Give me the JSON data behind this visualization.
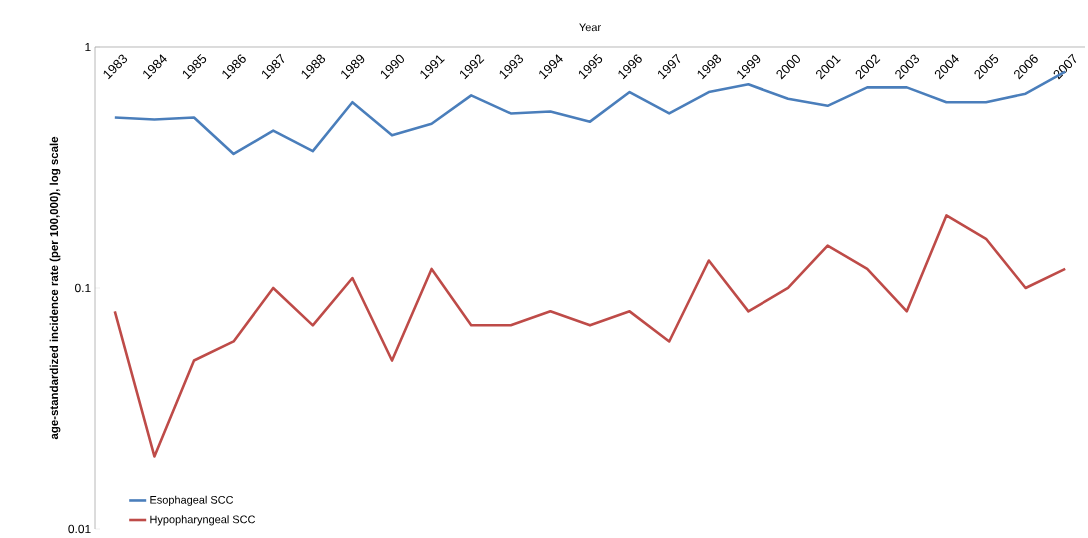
{
  "chart_data": {
    "type": "line",
    "xlabel": "Year",
    "ylabel": "age-standardized incidence rate (per 100,000), log scale",
    "categories": [
      "1983",
      "1984",
      "1985",
      "1986",
      "1987",
      "1988",
      "1989",
      "1990",
      "1991",
      "1992",
      "1993",
      "1994",
      "1995",
      "1996",
      "1997",
      "1998",
      "1999",
      "2000",
      "2001",
      "2002",
      "2003",
      "2004",
      "2005",
      "2006",
      "2007"
    ],
    "series": [
      {
        "name": "Esophageal SCC",
        "color": "#4a7ebb",
        "values": [
          0.51,
          0.5,
          0.51,
          0.36,
          0.45,
          0.37,
          0.59,
          0.43,
          0.48,
          0.63,
          0.53,
          0.54,
          0.49,
          0.65,
          0.53,
          0.65,
          0.7,
          0.61,
          0.57,
          0.68,
          0.68,
          0.59,
          0.59,
          0.64,
          0.79
        ]
      },
      {
        "name": "Hypopharyngeal SCC",
        "color": "#be4b48",
        "values": [
          0.08,
          0.02,
          0.05,
          0.06,
          0.1,
          0.07,
          0.11,
          0.05,
          0.12,
          0.07,
          0.07,
          0.08,
          0.07,
          0.08,
          0.06,
          0.13,
          0.08,
          0.1,
          0.15,
          0.12,
          0.08,
          0.2,
          0.16,
          0.1,
          0.12
        ]
      }
    ],
    "log": "y",
    "ylim": [
      0.01,
      1
    ],
    "yticks": [
      0.01,
      0.1,
      1
    ],
    "legend": "bottom left",
    "grid": false,
    "marker": "none",
    "line_style": "solid"
  }
}
